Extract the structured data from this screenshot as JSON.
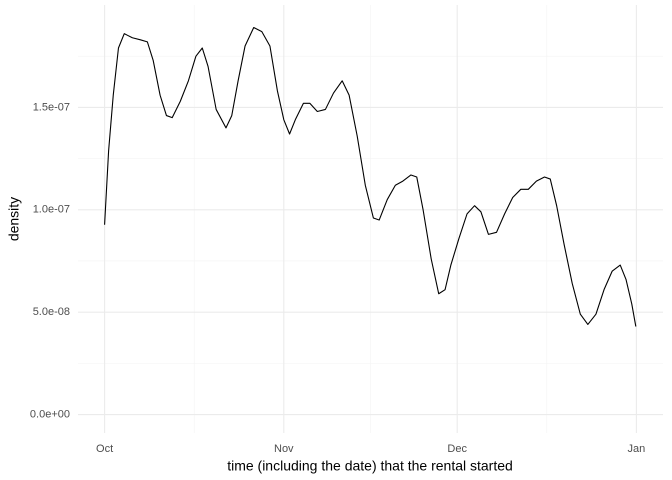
{
  "chart_data": {
    "type": "line",
    "x_label": "time (including the date) that the rental started",
    "y_label": "density",
    "x": [
      0,
      0.7,
      1.5,
      2.4,
      3.4,
      4.8,
      6.2,
      7.4,
      8.4,
      9.6,
      10.7,
      11.7,
      13.1,
      14.5,
      15.8,
      16.9,
      17.9,
      19.3,
      21.0,
      22.0,
      23.1,
      24.3,
      25.8,
      27.2,
      28.6,
      29.9,
      31.0,
      32.0,
      33.0,
      34.4,
      35.5,
      36.8,
      38.2,
      39.6,
      41.1,
      42.3,
      43.7,
      45.1,
      46.5,
      47.5,
      48.9,
      50.3,
      51.6,
      53.0,
      54.0,
      55.1,
      56.5,
      57.8,
      58.9,
      59.9,
      61.3,
      62.7,
      64.0,
      65.1,
      66.4,
      67.8,
      69.2,
      70.6,
      72.0,
      73.3,
      74.7,
      76.1,
      77.1,
      78.2,
      79.5,
      80.9,
      82.3,
      83.6,
      85.0,
      86.4,
      87.8,
      89.2,
      90.2,
      91.2,
      91.9
    ],
    "series": [
      {
        "name": "density",
        "color": "#000000",
        "values": [
          9.27e-08,
          1.29e-07,
          1.56e-07,
          1.79e-07,
          1.86e-07,
          1.84e-07,
          1.83e-07,
          1.82e-07,
          1.73e-07,
          1.56e-07,
          1.46e-07,
          1.45e-07,
          1.53e-07,
          1.63e-07,
          1.75e-07,
          1.79e-07,
          1.7e-07,
          1.49e-07,
          1.4e-07,
          1.46e-07,
          1.63e-07,
          1.8e-07,
          1.89e-07,
          1.87e-07,
          1.8e-07,
          1.58e-07,
          1.44e-07,
          1.37e-07,
          1.44e-07,
          1.52e-07,
          1.52e-07,
          1.48e-07,
          1.49e-07,
          1.57e-07,
          1.63e-07,
          1.56e-07,
          1.36e-07,
          1.12e-07,
          9.6e-08,
          9.5e-08,
          1.05e-07,
          1.12e-07,
          1.14e-07,
          1.17e-07,
          1.16e-07,
          1e-07,
          7.6e-08,
          5.9e-08,
          6.1e-08,
          7.3e-08,
          8.6e-08,
          9.8e-08,
          1.02e-07,
          9.9e-08,
          8.8e-08,
          8.9e-08,
          9.8e-08,
          1.06e-07,
          1.1e-07,
          1.1e-07,
          1.14e-07,
          1.16e-07,
          1.15e-07,
          1.02e-07,
          8.3e-08,
          6.4e-08,
          4.9e-08,
          4.4e-08,
          4.9e-08,
          6.1e-08,
          7e-08,
          7.3e-08,
          6.6e-08,
          5.4e-08,
          4.3e-08
        ]
      }
    ],
    "xlim": [
      -4.6,
      96.6
    ],
    "xticks": [
      {
        "value": 0,
        "label": "Oct"
      },
      {
        "value": 31,
        "label": "Nov"
      },
      {
        "value": 61,
        "label": "Dec"
      },
      {
        "value": 92,
        "label": "Jan"
      }
    ],
    "ylim": [
      -9e-09,
      2e-07
    ],
    "yticks": [
      {
        "value": 0,
        "label": "0.0e+00"
      },
      {
        "value": 5e-08,
        "label": "5.0e-08"
      },
      {
        "value": 1e-07,
        "label": "1.0e-07"
      },
      {
        "value": 1.5e-07,
        "label": "1.5e-07"
      }
    ],
    "grid": true
  }
}
